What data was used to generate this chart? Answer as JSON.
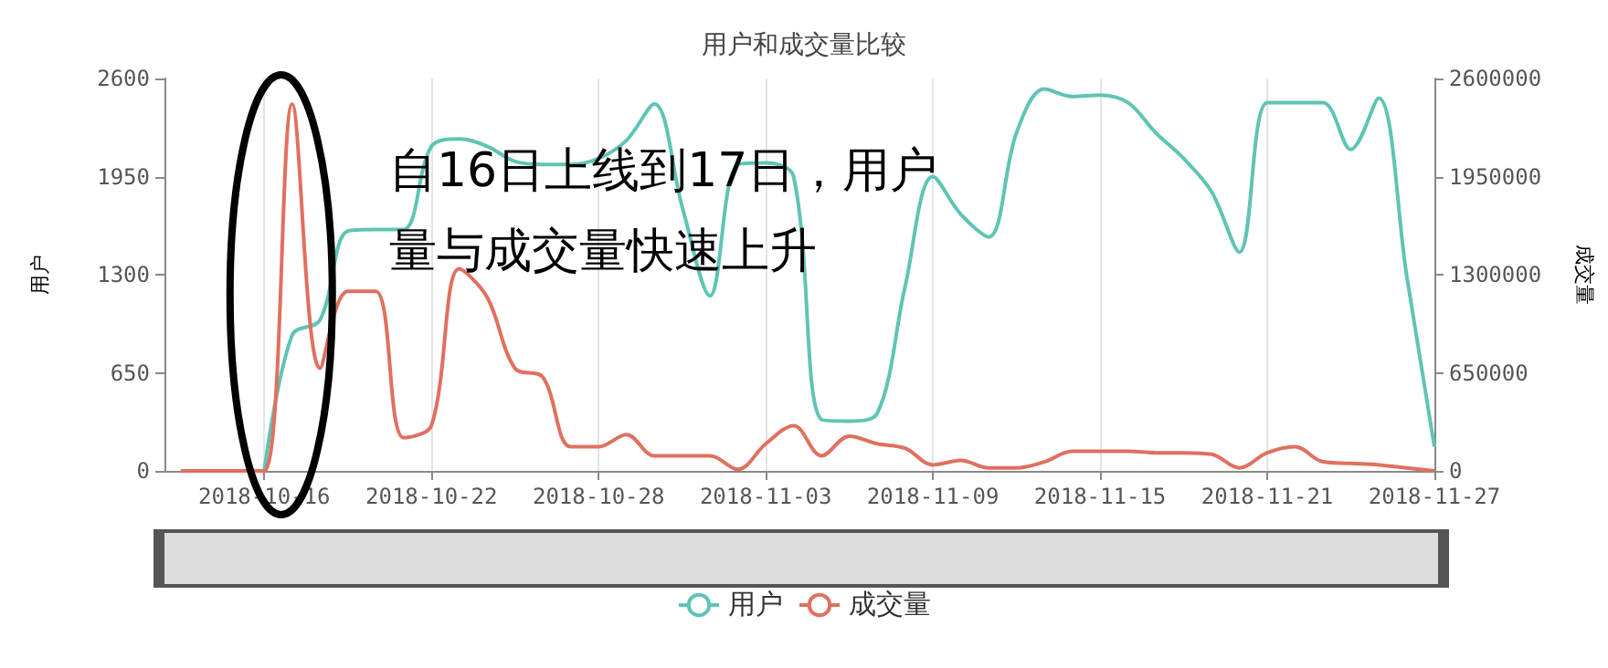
{
  "chart_data": {
    "type": "line",
    "title": "用户和成交量比较",
    "ylabel": "用户",
    "y2label": "成交量",
    "x": [
      "2018-10-13",
      "2018-10-14",
      "2018-10-15",
      "2018-10-16",
      "2018-10-17",
      "2018-10-18",
      "2018-10-19",
      "2018-10-20",
      "2018-10-21",
      "2018-10-22",
      "2018-10-23",
      "2018-10-24",
      "2018-10-25",
      "2018-10-26",
      "2018-10-27",
      "2018-10-28",
      "2018-10-29",
      "2018-10-30",
      "2018-10-31",
      "2018-11-01",
      "2018-11-02",
      "2018-11-03",
      "2018-11-04",
      "2018-11-05",
      "2018-11-06",
      "2018-11-07",
      "2018-11-08",
      "2018-11-09",
      "2018-11-10",
      "2018-11-11",
      "2018-11-12",
      "2018-11-13",
      "2018-11-14",
      "2018-11-15",
      "2018-11-16",
      "2018-11-17",
      "2018-11-18",
      "2018-11-19",
      "2018-11-20",
      "2018-11-21",
      "2018-11-22",
      "2018-11-23",
      "2018-11-24",
      "2018-11-25",
      "2018-11-26",
      "2018-11-27"
    ],
    "series": [
      {
        "name": "用户",
        "color": "#5fc4b4",
        "values": [
          null,
          null,
          null,
          0,
          900,
          1000,
          1590,
          1600,
          1600,
          2150,
          2200,
          2150,
          2050,
          2030,
          2030,
          2070,
          2190,
          2430,
          1750,
          1160,
          2030,
          2040,
          1950,
          340,
          330,
          380,
          1220,
          1950,
          1700,
          1550,
          2240,
          2530,
          2480,
          2490,
          2440,
          2240,
          2070,
          1850,
          1450,
          2440,
          2440,
          2440,
          2130,
          2470,
          1300,
          160
        ]
      },
      {
        "name": "成交量",
        "color": "#e0705f",
        "axis": "y2",
        "values": [
          0,
          0,
          0,
          0,
          2430000,
          680000,
          1190000,
          1190000,
          220000,
          300000,
          1340000,
          1150000,
          680000,
          620000,
          160000,
          160000,
          240000,
          100000,
          100000,
          100000,
          10000,
          180000,
          300000,
          100000,
          230000,
          180000,
          150000,
          40000,
          70000,
          20000,
          20000,
          60000,
          130000,
          130000,
          130000,
          120000,
          120000,
          110000,
          20000,
          120000,
          160000,
          60000,
          50000,
          40000,
          20000,
          0
        ]
      }
    ],
    "xlim": [
      "2018-10-12T10:00",
      "2018-11-27"
    ],
    "xticks": [
      {
        "value": "2018-10-16",
        "label": "2018-10-16"
      },
      {
        "value": "2018-10-22",
        "label": "2018-10-22"
      },
      {
        "value": "2018-10-28",
        "label": "2018-10-28"
      },
      {
        "value": "2018-11-03",
        "label": "2018-11-03"
      },
      {
        "value": "2018-11-09",
        "label": "2018-11-09"
      },
      {
        "value": "2018-11-15",
        "label": "2018-11-15"
      },
      {
        "value": "2018-11-21",
        "label": "2018-11-21"
      },
      {
        "value": "2018-11-27",
        "label": "2018-11-27"
      }
    ],
    "ylim": [
      0,
      2600
    ],
    "yticks": [
      0,
      650,
      1300,
      1950,
      2600
    ],
    "y2lim": [
      0,
      2600000
    ],
    "y2ticks": [
      0,
      650000,
      1300000,
      1950000,
      2600000
    ],
    "annotations": [
      {
        "text": "自16日上线到17日，用户量与成交量快速上升",
        "x": "2018-10-17",
        "y": 2430
      }
    ],
    "grid": "x",
    "legend": "bottom",
    "marker": "none"
  }
}
